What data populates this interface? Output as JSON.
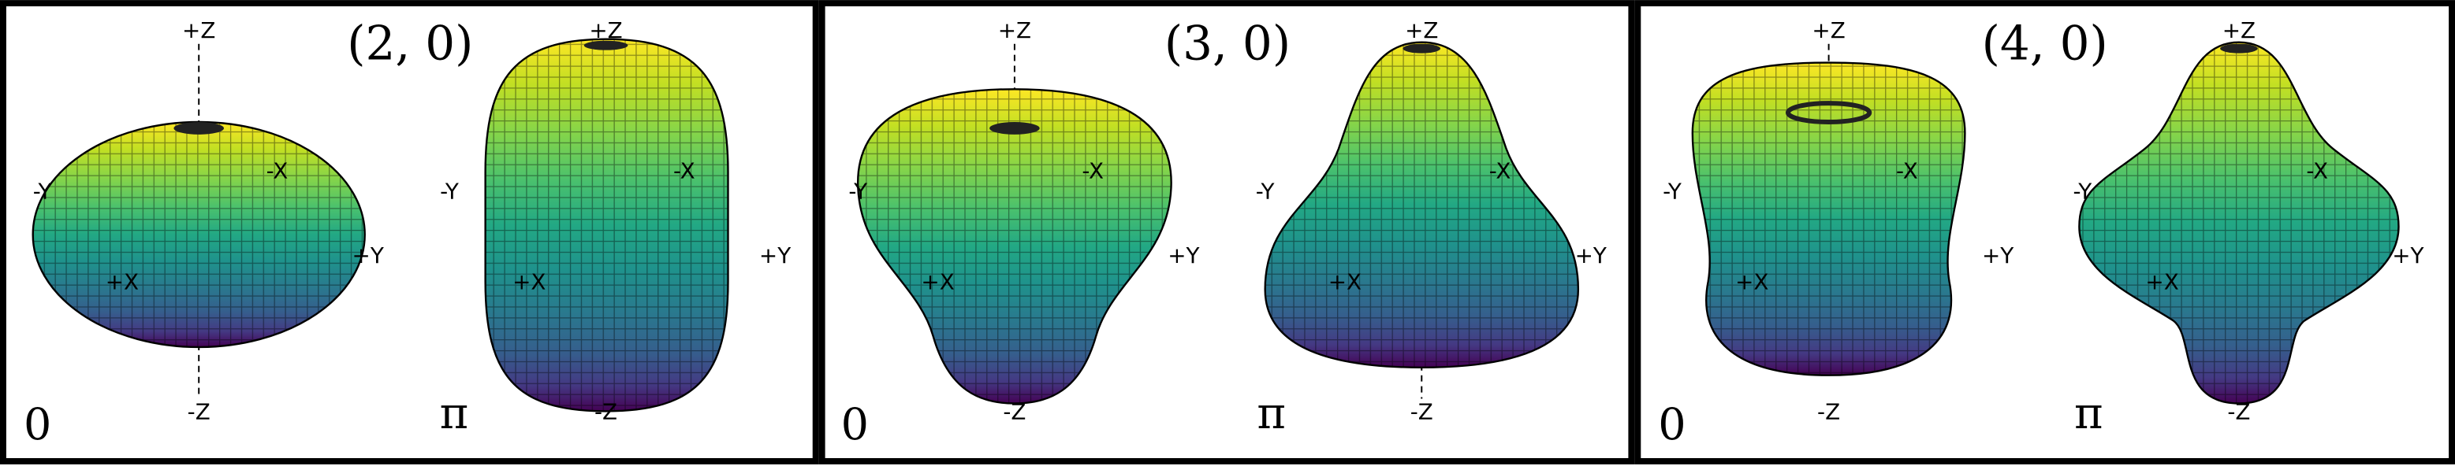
{
  "axis_labels": {
    "pz": "+Z",
    "nz": "-Z",
    "px": "+X",
    "nx": "-X",
    "py": "+Y",
    "ny": "-Y"
  },
  "panels": [
    {
      "title": "(2, 0)",
      "phases": [
        "0",
        "π"
      ]
    },
    {
      "title": "(3, 0)",
      "phases": [
        "0",
        "π"
      ]
    },
    {
      "title": "(4, 0)",
      "phases": [
        "0",
        "π"
      ]
    }
  ]
}
